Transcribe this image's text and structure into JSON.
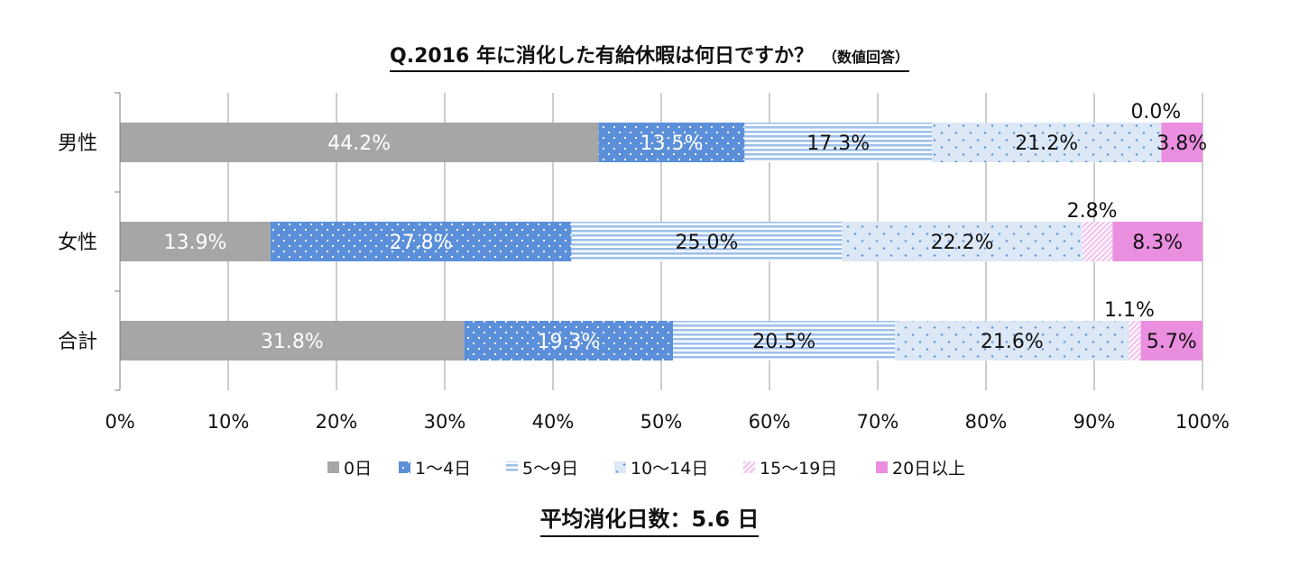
{
  "title": {
    "main": "Q.2016 年に消化した有給休暇は何日ですか？",
    "note": "（数値回答）"
  },
  "summary": {
    "label": "平均消化日数：5.6 日"
  },
  "colors": {
    "cat0": "#a6a6a6",
    "cat1": "#5b8fd9",
    "cat2": "#9dc0ea",
    "cat3": "#dce8f5",
    "cat4": "#f3c6ef",
    "cat5": "#ea8ee0",
    "grid": "#7f7f7f",
    "text": "#111111"
  },
  "chart_data": {
    "type": "bar",
    "orientation": "horizontal",
    "stacked": true,
    "percent": true,
    "categories": [
      "男性",
      "女性",
      "合計"
    ],
    "series": [
      {
        "name": "0日",
        "values": [
          44.2,
          13.9,
          31.8
        ],
        "labels": [
          "44.2%",
          "13.9%",
          "31.8%"
        ]
      },
      {
        "name": "1～4日",
        "values": [
          13.5,
          27.8,
          19.3
        ],
        "labels": [
          "13.5%",
          "27.8%",
          "19.3%"
        ]
      },
      {
        "name": "5～9日",
        "values": [
          17.3,
          25.0,
          20.5
        ],
        "labels": [
          "17.3%",
          "25.0%",
          "20.5%"
        ]
      },
      {
        "name": "10～14日",
        "values": [
          21.2,
          22.2,
          21.6
        ],
        "labels": [
          "21.2%",
          "22.2%",
          "21.6%"
        ]
      },
      {
        "name": "15～19日",
        "values": [
          0.0,
          2.8,
          1.1
        ],
        "labels": [
          "0.0%",
          "2.8%",
          "1.1%"
        ]
      },
      {
        "name": "20日以上",
        "values": [
          3.8,
          8.3,
          5.7
        ],
        "labels": [
          "3.8%",
          "8.3%",
          "5.7%"
        ]
      }
    ],
    "xlim": [
      0,
      100
    ],
    "xticks": [
      "0%",
      "10%",
      "20%",
      "30%",
      "40%",
      "50%",
      "60%",
      "70%",
      "80%",
      "90%",
      "100%"
    ],
    "grid": true,
    "legend_position": "bottom"
  }
}
